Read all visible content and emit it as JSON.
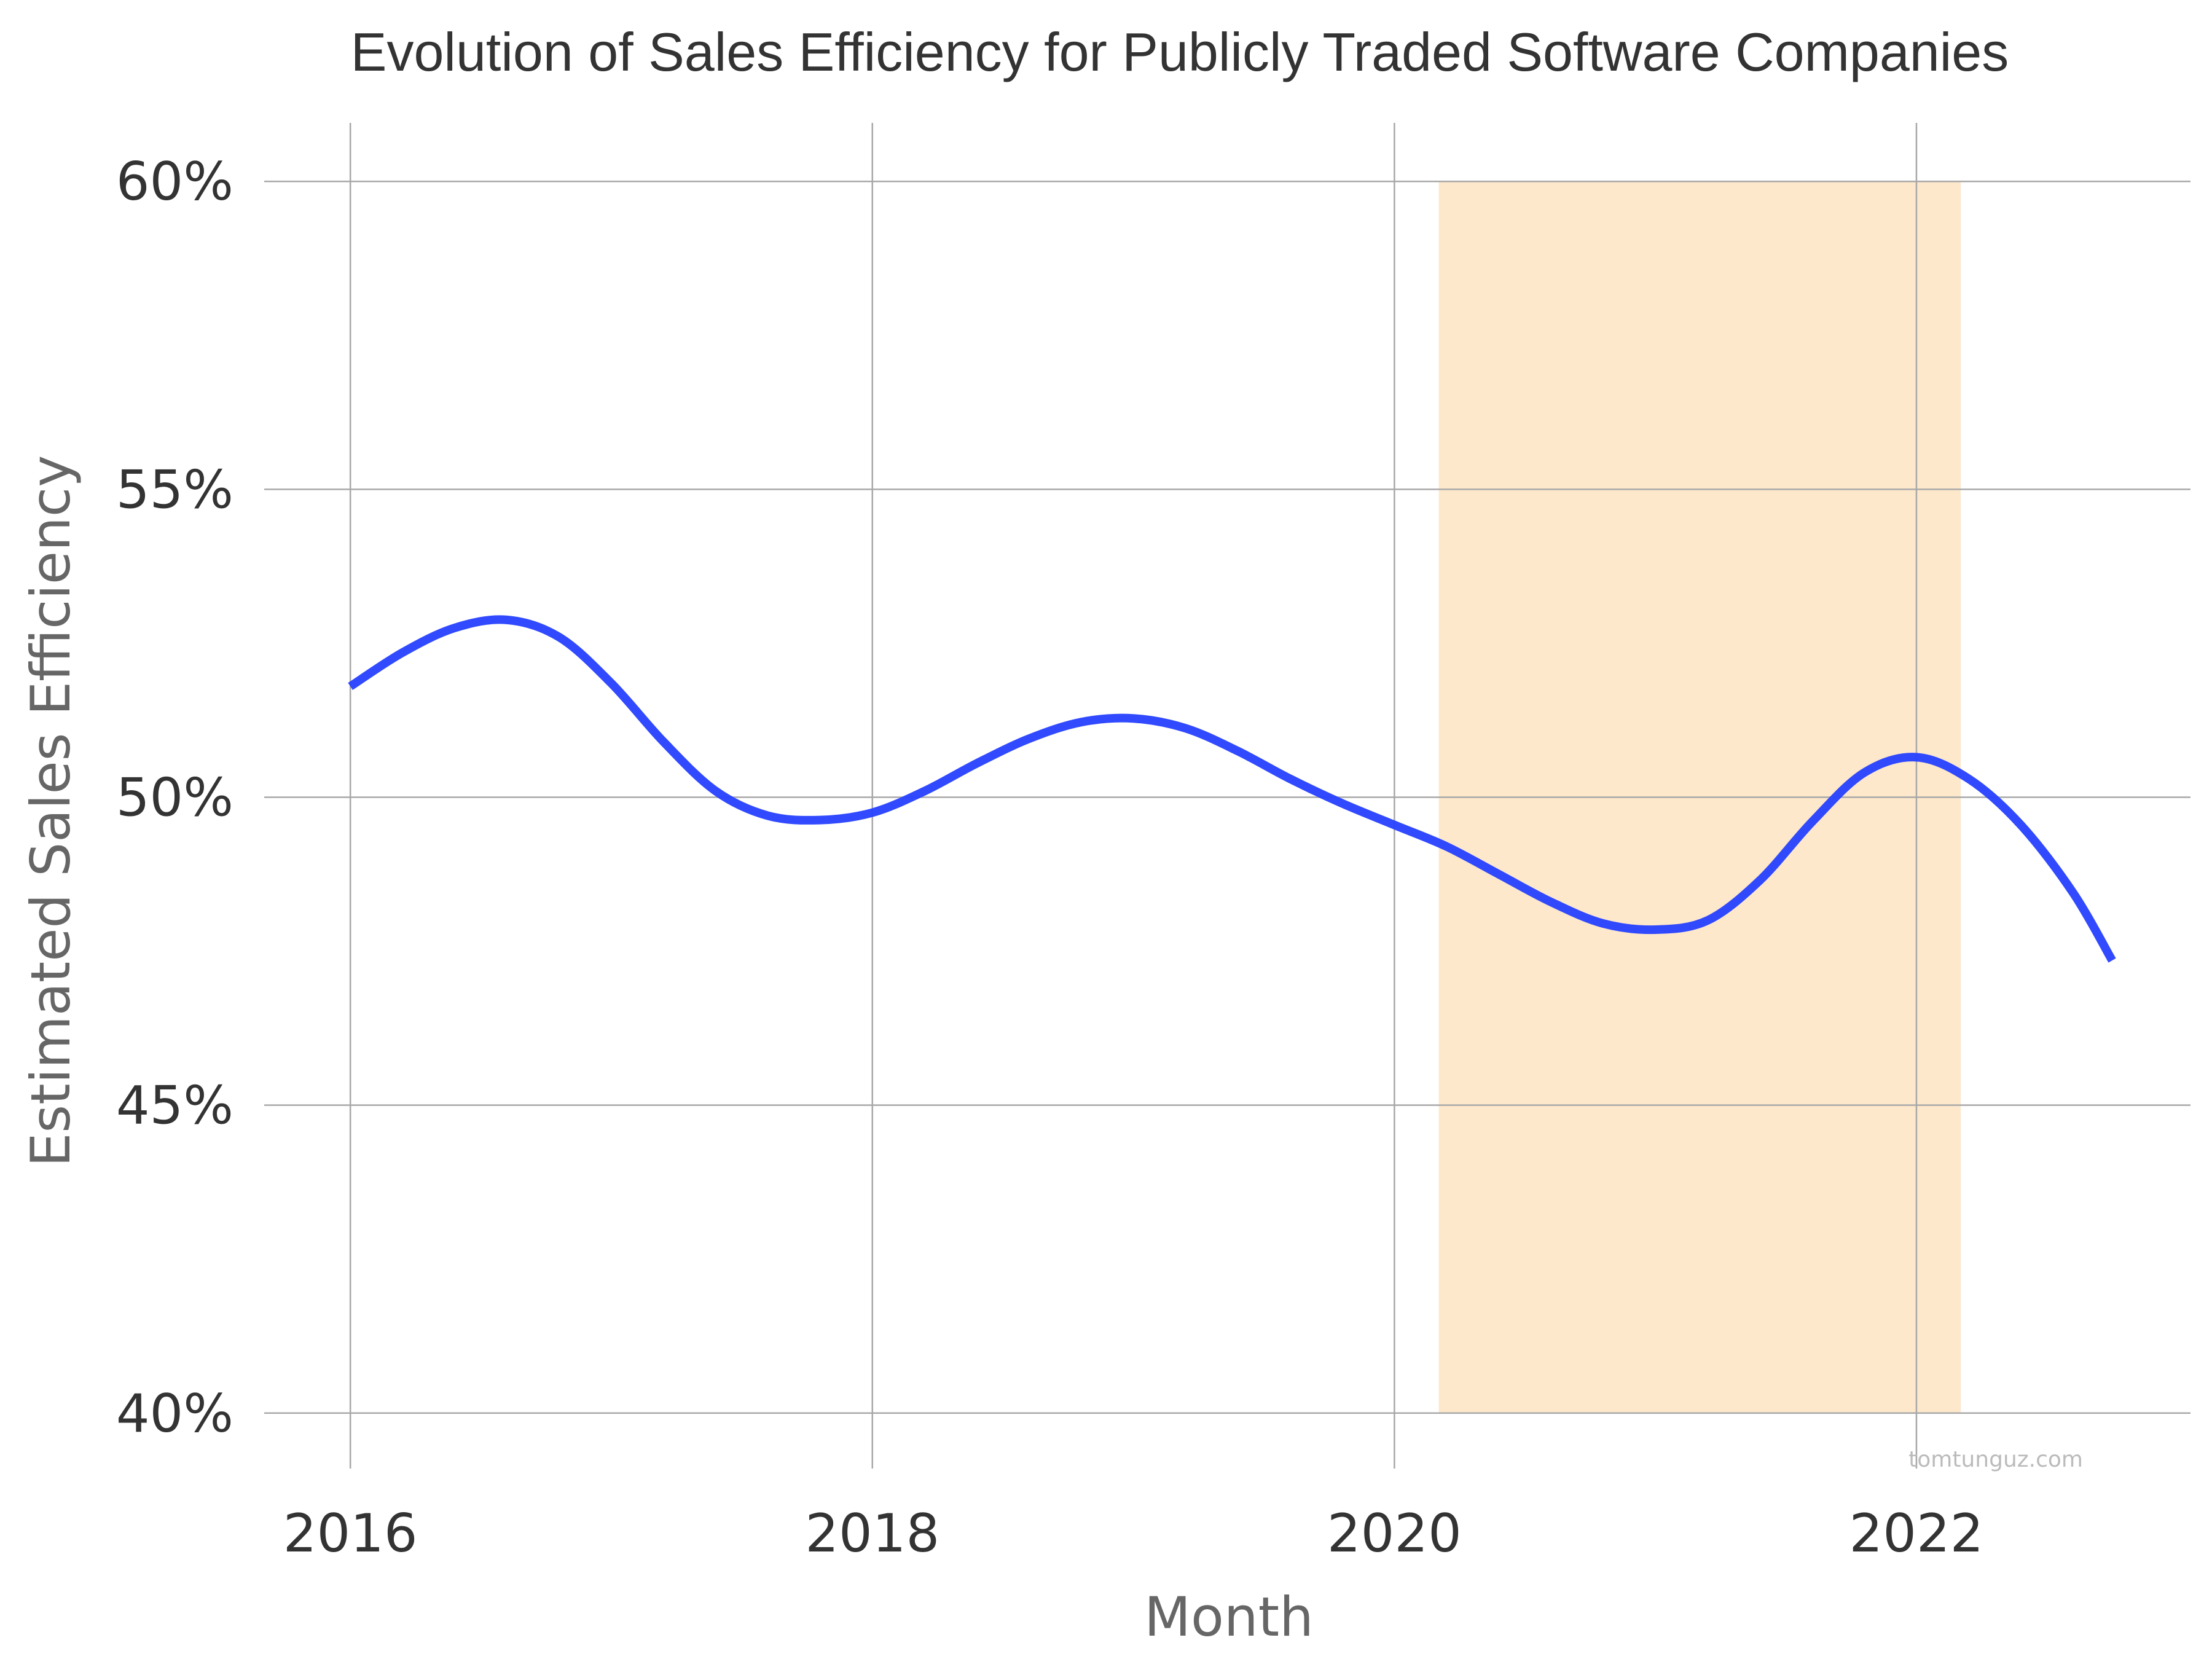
{
  "chart_data": {
    "type": "line",
    "title": "Evolution of Sales Efficiency for Publicly Traded Software Companies",
    "xlabel": "Month",
    "ylabel": "Estimated Sales Efficiency",
    "xlim": [
      2015.67,
      2023.05
    ],
    "ylim": [
      39.1,
      60.95
    ],
    "x_ticks": [
      2016,
      2018,
      2020,
      2022
    ],
    "x_tick_labels": [
      "2016",
      "2018",
      "2020",
      "2022"
    ],
    "y_ticks": [
      40,
      45,
      50,
      55,
      60
    ],
    "y_tick_labels": [
      "40%",
      "45%",
      "50%",
      "55%",
      "60%"
    ],
    "grid": true,
    "series": [
      {
        "name": "Estimated Sales Efficiency",
        "color": "#2640ff",
        "x": [
          2016.0,
          2016.2,
          2016.4,
          2016.6,
          2016.8,
          2017.0,
          2017.2,
          2017.4,
          2017.6,
          2017.8,
          2018.0,
          2018.2,
          2018.4,
          2018.6,
          2018.8,
          2019.0,
          2019.2,
          2019.4,
          2019.6,
          2019.8,
          2020.0,
          2020.2,
          2020.4,
          2020.6,
          2020.8,
          2021.0,
          2021.2,
          2021.4,
          2021.6,
          2021.8,
          2022.0,
          2022.2,
          2022.4,
          2022.6,
          2022.75
        ],
        "y": [
          51.8,
          52.35,
          52.75,
          52.88,
          52.6,
          51.85,
          50.9,
          50.1,
          49.7,
          49.63,
          49.75,
          50.1,
          50.55,
          50.95,
          51.22,
          51.28,
          51.12,
          50.75,
          50.3,
          49.9,
          49.55,
          49.2,
          48.75,
          48.3,
          47.95,
          47.85,
          48.0,
          48.65,
          49.6,
          50.4,
          50.65,
          50.3,
          49.55,
          48.45,
          47.35
        ]
      }
    ],
    "shaded_regions": [
      {
        "x_start": 2020.17,
        "x_end": 2022.17,
        "color": "#fde8cc"
      }
    ],
    "credit": "tomtunguz.com"
  }
}
